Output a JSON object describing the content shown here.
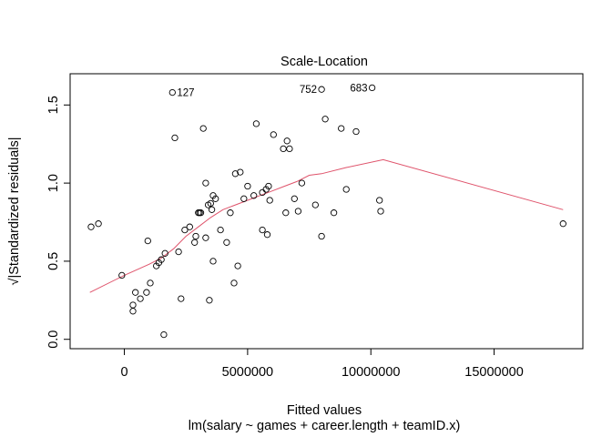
{
  "chart_data": {
    "type": "scatter",
    "title": "Scale-Location",
    "xlabel": "Fitted values",
    "sublabel": "lm(salary ~ games + career.length + teamID.x)",
    "ylabel": "√|Standardized residuals|",
    "xlim": [
      -2200000,
      18600000
    ],
    "ylim": [
      -0.06,
      1.7
    ],
    "x_ticks": [
      0,
      5000000,
      10000000,
      15000000
    ],
    "x_tick_labels": [
      "0",
      "5000000",
      "10000000",
      "15000000"
    ],
    "y_ticks": [
      0.0,
      0.5,
      1.0,
      1.5
    ],
    "y_tick_labels": [
      "0.0",
      "0.5",
      "1.0",
      "1.5"
    ],
    "grid": false,
    "point_color": "#000000",
    "smooth_color": "#DF536B",
    "points": [
      [
        -1350000,
        0.72
      ],
      [
        -1050000,
        0.74
      ],
      [
        -100000,
        0.41
      ],
      [
        350000,
        0.22
      ],
      [
        350000,
        0.18
      ],
      [
        450000,
        0.3
      ],
      [
        650000,
        0.26
      ],
      [
        900000,
        0.3
      ],
      [
        950000,
        0.63
      ],
      [
        1050000,
        0.36
      ],
      [
        1300000,
        0.47
      ],
      [
        1400000,
        0.49
      ],
      [
        1500000,
        0.51
      ],
      [
        1600000,
        0.03
      ],
      [
        1650000,
        0.55
      ],
      [
        1950000,
        1.58
      ],
      [
        2050000,
        1.29
      ],
      [
        2200000,
        0.56
      ],
      [
        2300000,
        0.26
      ],
      [
        2450000,
        0.7
      ],
      [
        2650000,
        0.72
      ],
      [
        2850000,
        0.62
      ],
      [
        2900000,
        0.66
      ],
      [
        3000000,
        0.81
      ],
      [
        3050000,
        0.81
      ],
      [
        3100000,
        0.81
      ],
      [
        3200000,
        1.35
      ],
      [
        3300000,
        0.65
      ],
      [
        3300000,
        1.0
      ],
      [
        3400000,
        0.86
      ],
      [
        3450000,
        0.25
      ],
      [
        3500000,
        0.87
      ],
      [
        3550000,
        0.83
      ],
      [
        3600000,
        0.5
      ],
      [
        3600000,
        0.92
      ],
      [
        3700000,
        0.9
      ],
      [
        3900000,
        0.7
      ],
      [
        4150000,
        0.62
      ],
      [
        4300000,
        0.81
      ],
      [
        4450000,
        0.36
      ],
      [
        4500000,
        1.06
      ],
      [
        4600000,
        0.47
      ],
      [
        4700000,
        1.07
      ],
      [
        4850000,
        0.9
      ],
      [
        5000000,
        0.98
      ],
      [
        5250000,
        0.92
      ],
      [
        5350000,
        1.38
      ],
      [
        5600000,
        0.7
      ],
      [
        5600000,
        0.94
      ],
      [
        5750000,
        0.96
      ],
      [
        5800000,
        0.67
      ],
      [
        5850000,
        0.98
      ],
      [
        5900000,
        0.89
      ],
      [
        6050000,
        1.31
      ],
      [
        6450000,
        1.22
      ],
      [
        6550000,
        0.81
      ],
      [
        6600000,
        1.27
      ],
      [
        6700000,
        1.22
      ],
      [
        6900000,
        0.9
      ],
      [
        7050000,
        0.82
      ],
      [
        7200000,
        1.0
      ],
      [
        7750000,
        0.86
      ],
      [
        8000000,
        0.66
      ],
      [
        8000000,
        1.6
      ],
      [
        8150000,
        1.41
      ],
      [
        8500000,
        0.81
      ],
      [
        8800000,
        1.35
      ],
      [
        9000000,
        0.96
      ],
      [
        9400000,
        1.33
      ],
      [
        10050000,
        1.61
      ],
      [
        10350000,
        0.89
      ],
      [
        10400000,
        0.82
      ],
      [
        17800000,
        0.74
      ]
    ],
    "labeled_points": [
      {
        "label": "127",
        "x": 1950000,
        "y": 1.58
      },
      {
        "label": "752",
        "x": 8000000,
        "y": 1.6
      },
      {
        "label": "683",
        "x": 10050000,
        "y": 1.61
      }
    ],
    "smooth_line": [
      [
        -1400000,
        0.3
      ],
      [
        0,
        0.41
      ],
      [
        1000000,
        0.48
      ],
      [
        1500000,
        0.52
      ],
      [
        2000000,
        0.58
      ],
      [
        2500000,
        0.66
      ],
      [
        3000000,
        0.72
      ],
      [
        3500000,
        0.78
      ],
      [
        4000000,
        0.83
      ],
      [
        4500000,
        0.86
      ],
      [
        5000000,
        0.89
      ],
      [
        5500000,
        0.92
      ],
      [
        6000000,
        0.95
      ],
      [
        6500000,
        0.98
      ],
      [
        7000000,
        1.01
      ],
      [
        7500000,
        1.05
      ],
      [
        8000000,
        1.06
      ],
      [
        9000000,
        1.1
      ],
      [
        10500000,
        1.15
      ],
      [
        17800000,
        0.83
      ]
    ]
  }
}
